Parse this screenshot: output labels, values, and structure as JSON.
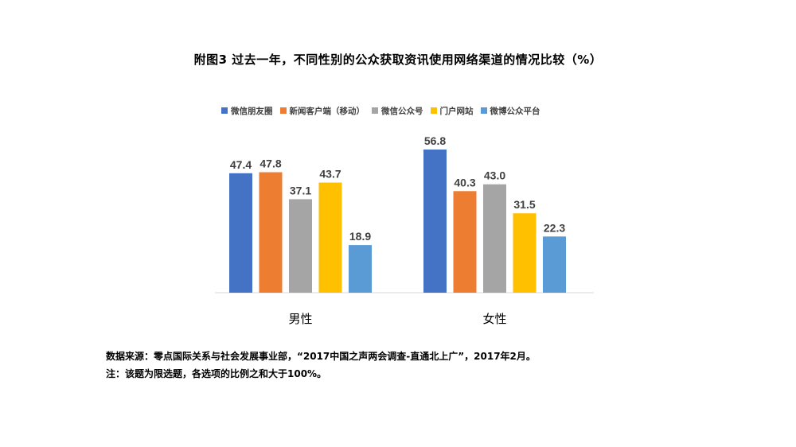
{
  "chart_data": {
    "type": "bar",
    "title": "附图3 过去一年，不同性别的公众获取资讯使用网络渠道的情况比较（%）",
    "categories": [
      "男性",
      "女性"
    ],
    "series": [
      {
        "name": "微信朋友圈",
        "color": "#4472C4",
        "values": [
          47.4,
          56.8
        ]
      },
      {
        "name": "新闻客户端（移动）",
        "color": "#ED7D31",
        "values": [
          47.8,
          40.3
        ]
      },
      {
        "name": "微信公众号",
        "color": "#A5A5A5",
        "values": [
          37.1,
          43.0
        ]
      },
      {
        "name": "门户网站",
        "color": "#FFC000",
        "values": [
          43.7,
          31.5
        ]
      },
      {
        "name": "微博公众平台",
        "color": "#5B9BD5",
        "values": [
          18.9,
          22.3
        ]
      }
    ],
    "ylim": [
      0,
      60
    ],
    "legend_position": "top",
    "grid": false,
    "data_labels": true
  },
  "notes": {
    "source": "数据来源：零点国际关系与社会发展事业部，“2017中国之声两会调查-直通北上广”，2017年2月。",
    "note": "注：该题为限选题，各选项的比例之和大于100%。"
  }
}
